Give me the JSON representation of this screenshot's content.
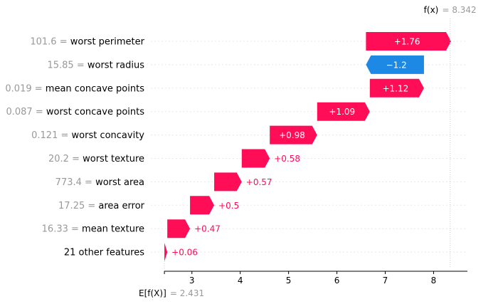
{
  "colors": {
    "positive": "#ff0d57",
    "negative": "#1e88e5",
    "value_text": "#999999",
    "grid": "#e8e8e8",
    "axis": "#000000"
  },
  "chart_data": {
    "type": "waterfall",
    "base_value_label": "E[f(X)]",
    "base_value_text": "2.431",
    "base_value": 2.431,
    "output_value_label": "f(x)",
    "output_value_text": "8.342",
    "output_value": 8.342,
    "xlim": [
      2.15,
      8.7
    ],
    "x_ticks": [
      3,
      4,
      5,
      6,
      7,
      8
    ],
    "features": [
      {
        "value": "101.6",
        "name": "worst perimeter",
        "contribution": 1.76,
        "label": "+1.76"
      },
      {
        "value": "15.85",
        "name": "worst radius",
        "contribution": -1.2,
        "label": "−1.2"
      },
      {
        "value": "0.019",
        "name": "mean concave points",
        "contribution": 1.12,
        "label": "+1.12"
      },
      {
        "value": "0.087",
        "name": "worst concave points",
        "contribution": 1.09,
        "label": "+1.09"
      },
      {
        "value": "0.121",
        "name": "worst concavity",
        "contribution": 0.98,
        "label": "+0.98"
      },
      {
        "value": "20.2",
        "name": "worst texture",
        "contribution": 0.58,
        "label": "+0.58"
      },
      {
        "value": "773.4",
        "name": "worst area",
        "contribution": 0.57,
        "label": "+0.57"
      },
      {
        "value": "17.25",
        "name": "area error",
        "contribution": 0.5,
        "label": "+0.5"
      },
      {
        "value": "16.33",
        "name": "mean texture",
        "contribution": 0.47,
        "label": "+0.47"
      },
      {
        "value": "",
        "name": "21 other features",
        "contribution": 0.06,
        "label": "+0.06"
      }
    ]
  }
}
